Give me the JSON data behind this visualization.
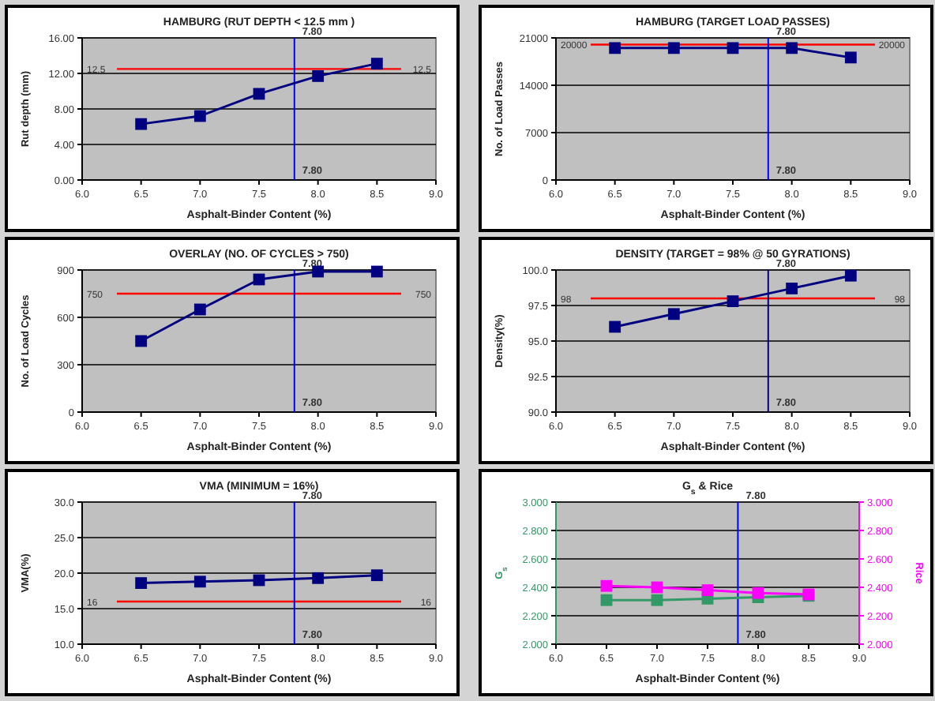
{
  "chart_data": [
    {
      "type": "line",
      "title": "HAMBURG (RUT DEPTH < 12.5 mm )",
      "xlabel": "Asphalt-Binder Content (%)",
      "ylabel": "Rut depth (mm)",
      "x": [
        6.5,
        7.0,
        7.5,
        8.0,
        8.5
      ],
      "marker": "square",
      "grid": "y",
      "series": [
        {
          "color": "#000080",
          "values": [
            6.3,
            7.2,
            9.7,
            11.7,
            13.1
          ]
        }
      ],
      "xlim": [
        6,
        9
      ],
      "xticks": [
        {
          "value": 6,
          "label": "6.0"
        },
        {
          "value": 6.5,
          "label": "6.5"
        },
        {
          "value": 7,
          "label": "7.0"
        },
        {
          "value": 7.5,
          "label": "7.5"
        },
        {
          "value": 8,
          "label": "8.0"
        },
        {
          "value": 8.5,
          "label": "8.5"
        },
        {
          "value": 9,
          "label": "9.0"
        }
      ],
      "ylim": [
        0,
        16
      ],
      "yticks": [
        {
          "value": 0,
          "label": "0.00"
        },
        {
          "value": 4,
          "label": "4.00"
        },
        {
          "value": 8,
          "label": "8.00"
        },
        {
          "value": 12,
          "label": "12.00"
        },
        {
          "value": 16,
          "label": "16.00"
        }
      ],
      "ref_lines": [
        {
          "axis": "y",
          "value": 12.5,
          "label": "12.5",
          "color": "#ff0000"
        },
        {
          "axis": "x",
          "value": 7.8,
          "label": "7.80",
          "color": "#0000ff"
        }
      ]
    },
    {
      "type": "line",
      "title": "HAMBURG (TARGET LOAD PASSES)",
      "xlabel": "Asphalt-Binder Content (%)",
      "ylabel": "No. of Load Passes",
      "x": [
        6.5,
        7.0,
        7.5,
        8.0,
        8.5
      ],
      "marker": "square",
      "grid": "y",
      "series": [
        {
          "color": "#000080",
          "values": [
            19500,
            19500,
            19500,
            19500,
            18100
          ]
        }
      ],
      "xlim": [
        6,
        9
      ],
      "xticks": [
        {
          "value": 6,
          "label": "6.0"
        },
        {
          "value": 6.5,
          "label": "6.5"
        },
        {
          "value": 7,
          "label": "7.0"
        },
        {
          "value": 7.5,
          "label": "7.5"
        },
        {
          "value": 8,
          "label": "8.0"
        },
        {
          "value": 8.5,
          "label": "8.5"
        },
        {
          "value": 9,
          "label": "9.0"
        }
      ],
      "ylim": [
        0,
        21000
      ],
      "yticks": [
        0,
        7000,
        14000,
        21000
      ],
      "ref_lines": [
        {
          "axis": "y",
          "value": 20000,
          "label": "20000",
          "color": "#ff0000"
        },
        {
          "axis": "x",
          "value": 7.8,
          "label": "7.80",
          "color": "#0000ff"
        }
      ]
    },
    {
      "type": "line",
      "title": "OVERLAY (NO. OF CYCLES > 750)",
      "xlabel": "Asphalt-Binder Content (%)",
      "ylabel": "No. of Load Cycles",
      "x": [
        6.5,
        7.0,
        7.5,
        8.0,
        8.5
      ],
      "marker": "square",
      "grid": "y",
      "series": [
        {
          "color": "#000080",
          "values": [
            450,
            650,
            840,
            890,
            890
          ]
        }
      ],
      "xlim": [
        6,
        9
      ],
      "xticks": [
        {
          "value": 6,
          "label": "6.0"
        },
        {
          "value": 6.5,
          "label": "6.5"
        },
        {
          "value": 7,
          "label": "7.0"
        },
        {
          "value": 7.5,
          "label": "7.5"
        },
        {
          "value": 8,
          "label": "8.0"
        },
        {
          "value": 8.5,
          "label": "8.5"
        },
        {
          "value": 9,
          "label": "9.0"
        }
      ],
      "ylim": [
        0,
        900
      ],
      "yticks": [
        0,
        300,
        600,
        900
      ],
      "ref_lines": [
        {
          "axis": "y",
          "value": 750,
          "label": "750",
          "color": "#ff0000"
        },
        {
          "axis": "x",
          "value": 7.8,
          "label": "7.80",
          "color": "#0000ff"
        }
      ]
    },
    {
      "type": "line",
      "title": "DENSITY (TARGET = 98% @ 50 GYRATIONS)",
      "xlabel": "Asphalt-Binder Content (%)",
      "ylabel": "Density(%)",
      "x": [
        6.5,
        7.0,
        7.5,
        8.0,
        8.5
      ],
      "marker": "square",
      "grid": "y",
      "series": [
        {
          "color": "#000080",
          "values": [
            96.0,
            96.9,
            97.8,
            98.7,
            99.6
          ]
        }
      ],
      "xlim": [
        6,
        9
      ],
      "xticks": [
        {
          "value": 6,
          "label": "6.0"
        },
        {
          "value": 6.5,
          "label": "6.5"
        },
        {
          "value": 7,
          "label": "7.0"
        },
        {
          "value": 7.5,
          "label": "7.5"
        },
        {
          "value": 8,
          "label": "8.0"
        },
        {
          "value": 8.5,
          "label": "8.5"
        },
        {
          "value": 9,
          "label": "9.0"
        }
      ],
      "ylim": [
        90,
        100
      ],
      "yticks": [
        {
          "value": 90,
          "label": "90.0"
        },
        92.5,
        {
          "value": 95,
          "label": "95.0"
        },
        97.5,
        {
          "value": 100,
          "label": "100.0"
        }
      ],
      "ref_lines": [
        {
          "axis": "y",
          "value": 98,
          "label": "98",
          "color": "#ff0000"
        },
        {
          "axis": "x",
          "value": 7.8,
          "label": "7.80",
          "color": "#000080"
        }
      ]
    },
    {
      "type": "line",
      "title": "VMA (MINIMUM = 16%)",
      "xlabel": "Asphalt-Binder Content (%)",
      "ylabel": "VMA(%)",
      "x": [
        6.5,
        7.0,
        7.5,
        8.0,
        8.5
      ],
      "marker": "square",
      "grid": "y",
      "series": [
        {
          "color": "#000080",
          "values": [
            18.6,
            18.8,
            19.0,
            19.3,
            19.7
          ]
        }
      ],
      "xlim": [
        6,
        9
      ],
      "xticks": [
        {
          "value": 6,
          "label": "6.0"
        },
        {
          "value": 6.5,
          "label": "6.5"
        },
        {
          "value": 7,
          "label": "7.0"
        },
        {
          "value": 7.5,
          "label": "7.5"
        },
        {
          "value": 8,
          "label": "8.0"
        },
        {
          "value": 8.5,
          "label": "8.5"
        },
        {
          "value": 9,
          "label": "9.0"
        }
      ],
      "ylim": [
        10,
        30
      ],
      "yticks": [
        {
          "value": 10,
          "label": "10.0"
        },
        {
          "value": 15,
          "label": "15.0"
        },
        {
          "value": 20,
          "label": "20.0"
        },
        {
          "value": 25,
          "label": "25.0"
        },
        {
          "value": 30,
          "label": "30.0"
        }
      ],
      "ref_lines": [
        {
          "axis": "y",
          "value": 16,
          "label": "16",
          "color": "#ff0000"
        },
        {
          "axis": "x",
          "value": 7.8,
          "label": "7.80",
          "color": "#0000ff"
        }
      ]
    },
    {
      "type": "line",
      "title": "G$_{s}$ & Rice",
      "xlabel": "Asphalt-Binder Content (%)",
      "ylabel": "G$_{s}$",
      "y2label": "Rice",
      "x": [
        6.5,
        7.0,
        7.5,
        8.0,
        8.5
      ],
      "marker": "square",
      "grid": "y",
      "series": [
        {
          "color": "#339966",
          "values": [
            2.31,
            2.31,
            2.32,
            2.33,
            2.34
          ]
        },
        {
          "color": "#ff00ff",
          "axis": "y2",
          "values": [
            2.41,
            2.4,
            2.38,
            2.36,
            2.35
          ]
        }
      ],
      "xlim": [
        6,
        9
      ],
      "xticks": [
        {
          "value": 6,
          "label": "6.0"
        },
        {
          "value": 6.5,
          "label": "6.5"
        },
        {
          "value": 7,
          "label": "7.0"
        },
        {
          "value": 7.5,
          "label": "7.5"
        },
        {
          "value": 8,
          "label": "8.0"
        },
        {
          "value": 8.5,
          "label": "8.5"
        },
        {
          "value": 9,
          "label": "9.0"
        }
      ],
      "ylim": [
        2,
        3
      ],
      "yticks": [
        {
          "value": 2,
          "label": "2.000"
        },
        {
          "value": 2.2,
          "label": "2.200"
        },
        {
          "value": 2.4,
          "label": "2.400"
        },
        {
          "value": 2.6,
          "label": "2.600"
        },
        {
          "value": 2.8,
          "label": "2.800"
        },
        {
          "value": 3,
          "label": "3.000"
        }
      ],
      "y2lim": [
        2,
        3
      ],
      "y2ticks": [
        {
          "value": 2,
          "label": "2.000"
        },
        {
          "value": 2.2,
          "label": "2.200"
        },
        {
          "value": 2.4,
          "label": "2.400"
        },
        {
          "value": 2.6,
          "label": "2.600"
        },
        {
          "value": 2.8,
          "label": "2.800"
        },
        {
          "value": 3,
          "label": "3.000"
        }
      ],
      "ref_lines": [
        {
          "axis": "x",
          "value": 7.8,
          "label": "7.80",
          "color": "#0000ff"
        }
      ]
    }
  ]
}
